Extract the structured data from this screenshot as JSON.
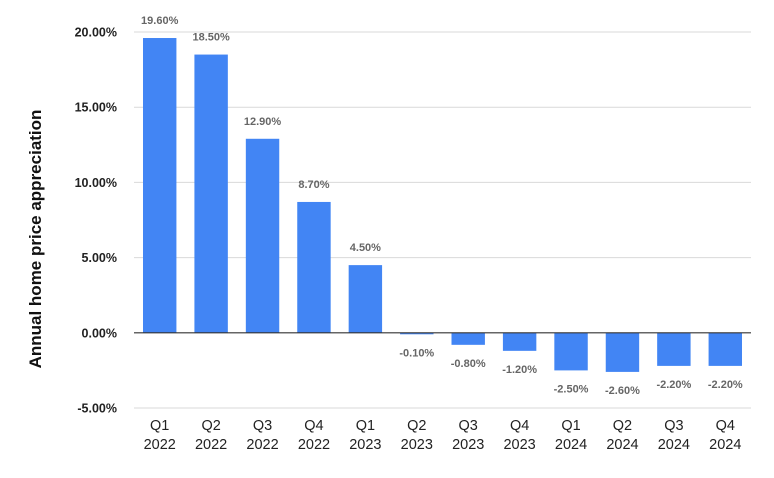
{
  "chart_data": {
    "type": "bar",
    "title": "",
    "xlabel": "",
    "ylabel": "Annual home price appreciation",
    "categories": [
      [
        "Q1",
        "2022"
      ],
      [
        "Q2",
        "2022"
      ],
      [
        "Q3",
        "2022"
      ],
      [
        "Q4",
        "2022"
      ],
      [
        "Q1",
        "2023"
      ],
      [
        "Q2",
        "2023"
      ],
      [
        "Q3",
        "2023"
      ],
      [
        "Q4",
        "2023"
      ],
      [
        "Q1",
        "2024"
      ],
      [
        "Q2",
        "2024"
      ],
      [
        "Q3",
        "2024"
      ],
      [
        "Q4",
        "2024"
      ]
    ],
    "values": [
      19.6,
      18.5,
      12.9,
      8.7,
      4.5,
      -0.1,
      -0.8,
      -1.2,
      -2.5,
      -2.6,
      -2.2,
      -2.2
    ],
    "data_labels": [
      "19.60%",
      "18.50%",
      "12.90%",
      "8.70%",
      "4.50%",
      "-0.10%",
      "-0.80%",
      "-1.20%",
      "-2.50%",
      "-2.60%",
      "-2.20%",
      "-2.20%"
    ],
    "yticks": [
      20,
      15,
      10,
      5,
      0,
      -5
    ],
    "ytick_labels": [
      "20.00%",
      "15.00%",
      "10.00%",
      "5.00%",
      "0.00%",
      "-5.00%"
    ],
    "ylim": [
      -5,
      20
    ],
    "grid": true,
    "legend": "none",
    "bar_color": "#4285f4",
    "grid_color": "#d9d9d9",
    "baseline_color": "#333333"
  }
}
